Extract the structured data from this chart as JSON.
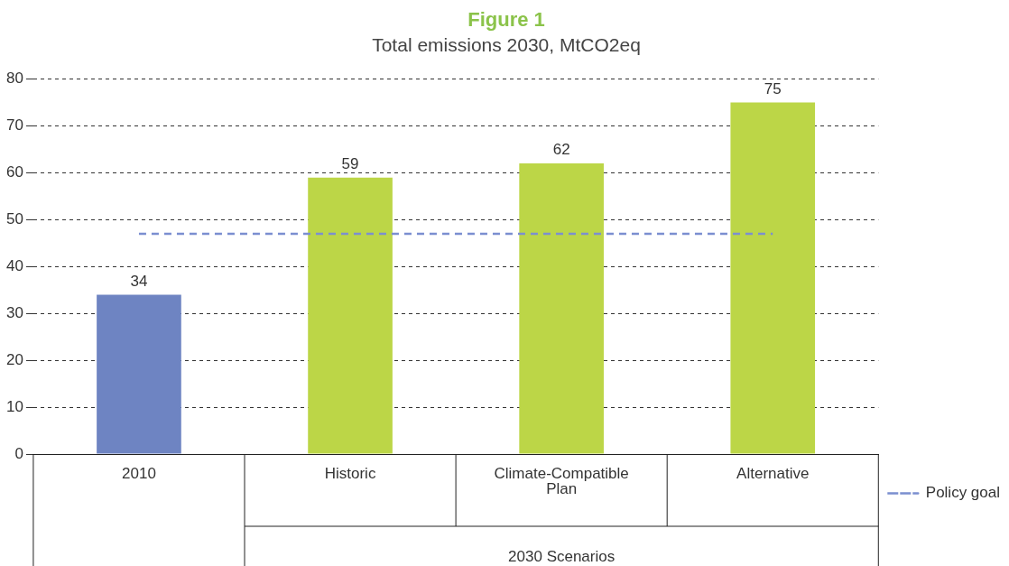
{
  "chart_data": {
    "type": "bar",
    "title": "Figure 1",
    "subtitle": "Total emissions 2030, MtCO2eq",
    "categories": [
      "2010",
      "Historic",
      "Climate-Compatible Plan",
      "Alternative"
    ],
    "series": [
      {
        "colors": [
          "#6e84c2",
          "#bcd647",
          "#bcd647",
          "#bcd647"
        ],
        "values": [
          34,
          59,
          62,
          75
        ],
        "value_labels": [
          "34",
          "59",
          "62",
          "75"
        ]
      },
      {
        "type": "line",
        "name": "Policy goal",
        "color": "#7b8fd0",
        "line_style": "dashed",
        "marker": "none",
        "values": [
          47,
          47,
          47,
          47
        ]
      }
    ],
    "ylim": [
      0,
      80
    ],
    "yticks": [
      0,
      10,
      20,
      30,
      40,
      50,
      60,
      70,
      80
    ],
    "grid": "y",
    "legend": "right",
    "annotations": [
      "2030 Scenarios"
    ]
  }
}
